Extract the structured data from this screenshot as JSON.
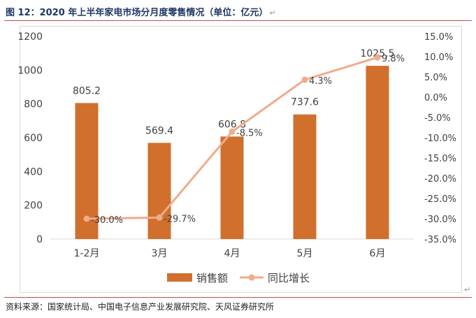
{
  "figure": {
    "title": "图 12：2020 年上半年家电市场分月度零售情况（单位：亿元）",
    "return_mark": "↵",
    "source": "资料来源：国家统计局、中国电子信息产业发展研究院、天风证券研究所"
  },
  "chart_data": {
    "type": "bar",
    "title": "2020年上半年家电市场分月度零售情况（单位：亿元）",
    "categories": [
      "1-2月",
      "3月",
      "4月",
      "5月",
      "6月"
    ],
    "series": [
      {
        "name": "销售额",
        "type": "bar",
        "axis": "left",
        "color": "#d0702c",
        "values": [
          805.2,
          569.4,
          606.8,
          737.6,
          1025.5
        ],
        "labels": [
          "805.2",
          "569.4",
          "606.8",
          "737.6",
          "1025.5"
        ]
      },
      {
        "name": "同比增长",
        "type": "line",
        "axis": "right",
        "color": "#f0ab8c",
        "values": [
          -30.0,
          -29.7,
          -8.5,
          4.3,
          9.8
        ],
        "labels": [
          "-30.0%",
          "-29.7%",
          "-8.5%",
          "4.3%",
          "9.8%"
        ]
      }
    ],
    "y_left": {
      "min": 0,
      "max": 1200,
      "ticks": [
        0,
        200,
        400,
        600,
        800,
        1000,
        1200
      ],
      "tick_labels": [
        "0",
        "200",
        "400",
        "600",
        "800",
        "1000",
        "1200"
      ]
    },
    "y_right": {
      "min": -35,
      "max": 15,
      "ticks": [
        15,
        10,
        5,
        0,
        -5,
        -10,
        -15,
        -20,
        -25,
        -30,
        -35
      ],
      "tick_labels": [
        "15.0%",
        "10.0%",
        "5.0%",
        "0.0%",
        "-5.0%",
        "-10.0%",
        "-15.0%",
        "-20.0%",
        "-25.0%",
        "-30.0%",
        "-35.0%"
      ]
    },
    "legend": {
      "position": "bottom",
      "items": [
        "销售额",
        "同比增长"
      ]
    },
    "grid": false
  }
}
